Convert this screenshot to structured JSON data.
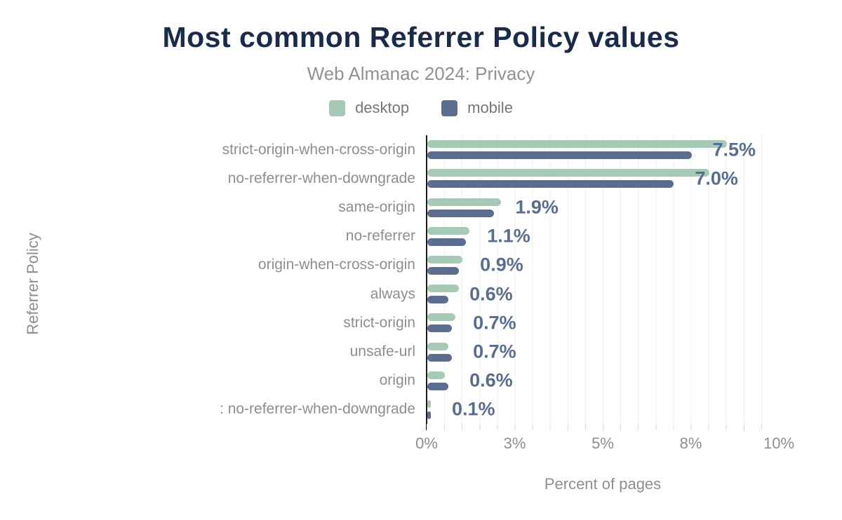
{
  "title": "Most common Referrer Policy values",
  "subtitle": "Web Almanac 2024: Privacy",
  "legend": [
    {
      "label": "desktop",
      "color": "#a6cab5"
    },
    {
      "label": "mobile",
      "color": "#5b6e8f"
    }
  ],
  "colors": {
    "title": "#1a2b49",
    "subtitle_text": "#8d9297",
    "axis_text": "#8a8f94",
    "annotation_text": "#5a6d90",
    "desktop_bar": "#a6cab5",
    "mobile_bar": "#5b6e8f",
    "axis_line": "#1d1d1d",
    "gridline": "#efeff2",
    "background": "#ffffff"
  },
  "chart_data": {
    "type": "bar",
    "orientation": "horizontal",
    "title": "Most common Referrer Policy values",
    "subtitle": "Web Almanac 2024: Privacy",
    "xlabel": "Percent of pages",
    "ylabel": "Referrer Policy",
    "xlim": [
      0,
      10
    ],
    "grid": "vertical gridlines every 0.5%",
    "legend_position": "top-center",
    "categories": [
      "strict-origin-when-cross-origin",
      "no-referrer-when-downgrade",
      "same-origin",
      "no-referrer",
      "origin-when-cross-origin",
      "always",
      "strict-origin",
      "unsafe-url",
      "origin",
      ": no-referrer-when-downgrade"
    ],
    "series": [
      {
        "name": "desktop",
        "color": "#a6cab5",
        "values": [
          8.5,
          8.0,
          2.1,
          1.2,
          1.0,
          0.9,
          0.8,
          0.6,
          0.5,
          0.1
        ]
      },
      {
        "name": "mobile",
        "color": "#5b6e8f",
        "values": [
          7.5,
          7.0,
          1.9,
          1.1,
          0.9,
          0.6,
          0.7,
          0.7,
          0.6,
          0.1
        ]
      }
    ],
    "annotations": [
      "7.5%",
      "7.0%",
      "1.9%",
      "1.1%",
      "0.9%",
      "0.6%",
      "0.7%",
      "0.7%",
      "0.6%",
      "0.1%"
    ],
    "x_ticks": [
      {
        "value": 0,
        "label": "0%"
      },
      {
        "value": 2.5,
        "label": "3%"
      },
      {
        "value": 5,
        "label": "5%"
      },
      {
        "value": 7.5,
        "label": "8%"
      },
      {
        "value": 10,
        "label": "10%"
      }
    ]
  }
}
